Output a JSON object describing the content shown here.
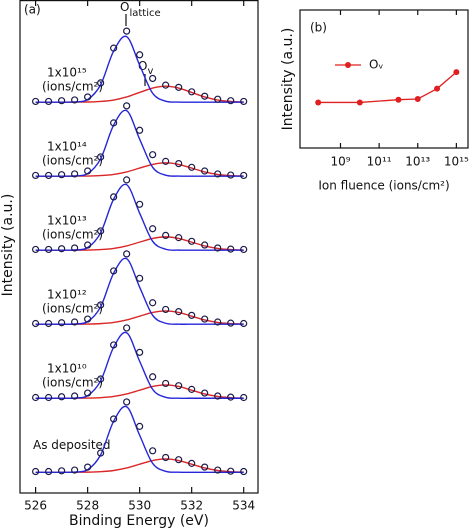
{
  "chart_data": [
    {
      "type": "spectra",
      "panel_label": "(a)",
      "xlabel": "Binding Energy (eV)",
      "ylabel": "Intensity (a.u.)",
      "xlim": [
        525.4,
        534.55
      ],
      "xticks": [
        526,
        528,
        530,
        532,
        534
      ],
      "ylim": [
        -0.28,
        6.38
      ],
      "annotations": [
        {
          "text": "O",
          "sub": "lattice"
        },
        {
          "text": "O",
          "sub": "v"
        }
      ],
      "colors": {
        "data": "#1c1c4a",
        "lattice": "#2626d9",
        "vacancy": "#d92626"
      },
      "x": [
        526,
        526.5,
        527,
        527.5,
        528,
        528.5,
        529,
        529.5,
        530,
        530.5,
        531,
        531.5,
        532,
        532.5,
        533,
        533.5,
        534
      ],
      "spectra": [
        {
          "label": "1x10¹⁵",
          "unit": "(ions/cm²)",
          "data": [
            5.01,
            5.01,
            5.02,
            5.03,
            5.07,
            5.26,
            5.73,
            5.96,
            5.64,
            5.32,
            5.23,
            5.2,
            5.14,
            5.08,
            5.04,
            5.02,
            5.01
          ],
          "lattice": [
            5,
            5,
            5,
            5.003,
            5.035,
            5.235,
            5.69,
            5.885,
            5.5,
            5.12,
            5.013,
            5.001,
            5,
            5,
            5,
            5,
            5
          ],
          "vacancy": [
            5,
            5,
            5,
            5.001,
            5.002,
            5.01,
            5.029,
            5.07,
            5.131,
            5.191,
            5.216,
            5.191,
            5.131,
            5.07,
            5.029,
            5.01,
            5.002
          ]
        },
        {
          "label": "1x10¹⁴",
          "unit": "(ions/cm²)",
          "data": [
            4.01,
            4.01,
            4.02,
            4.03,
            4.07,
            4.26,
            4.72,
            4.95,
            4.62,
            4.29,
            4.2,
            4.17,
            4.12,
            4.07,
            4.03,
            4.015,
            4.01
          ],
          "lattice": [
            4,
            4,
            4,
            4.003,
            4.035,
            4.235,
            4.69,
            4.885,
            4.5,
            4.12,
            4.013,
            4.001,
            4,
            4,
            4,
            4,
            4
          ],
          "vacancy": [
            4,
            4,
            4,
            4.001,
            4.002,
            4.008,
            4.024,
            4.058,
            4.109,
            4.159,
            4.18,
            4.159,
            4.109,
            4.058,
            4.024,
            4.008,
            4.002
          ]
        },
        {
          "label": "1x10¹³",
          "unit": "(ions/cm²)",
          "data": [
            3.01,
            3.01,
            3.02,
            3.03,
            3.07,
            3.26,
            3.72,
            3.95,
            3.62,
            3.29,
            3.2,
            3.17,
            3.12,
            3.07,
            3.03,
            3.015,
            3.01
          ],
          "lattice": [
            3,
            3,
            3,
            3.003,
            3.035,
            3.235,
            3.69,
            3.885,
            3.5,
            3.12,
            3.013,
            3.001,
            3,
            3,
            3,
            3,
            3
          ],
          "vacancy": [
            3,
            3,
            3,
            3.001,
            3.002,
            3.008,
            3.024,
            3.058,
            3.109,
            3.159,
            3.18,
            3.159,
            3.109,
            3.058,
            3.024,
            3.008,
            3.002
          ]
        },
        {
          "label": "1x10¹²",
          "unit": "(ions/cm²)",
          "data": [
            2.01,
            2.01,
            2.02,
            2.03,
            2.07,
            2.26,
            2.72,
            2.95,
            2.62,
            2.29,
            2.2,
            2.17,
            2.12,
            2.07,
            2.03,
            2.015,
            2.01
          ],
          "lattice": [
            2,
            2,
            2,
            2.003,
            2.035,
            2.235,
            2.69,
            2.885,
            2.5,
            2.12,
            2.013,
            2.001,
            2,
            2,
            2,
            2,
            2
          ],
          "vacancy": [
            2,
            2,
            2,
            2.001,
            2.002,
            2.008,
            2.024,
            2.058,
            2.109,
            2.159,
            2.18,
            2.159,
            2.109,
            2.058,
            2.024,
            2.008,
            2.002
          ]
        },
        {
          "label": "1x10¹⁰",
          "unit": "(ions/cm²)",
          "data": [
            1.01,
            1.01,
            1.02,
            1.03,
            1.07,
            1.26,
            1.72,
            1.95,
            1.62,
            1.29,
            1.2,
            1.17,
            1.12,
            1.07,
            1.03,
            1.015,
            1.01
          ],
          "lattice": [
            1,
            1,
            1,
            1.003,
            1.035,
            1.235,
            1.69,
            1.885,
            1.5,
            1.12,
            1.013,
            1.001,
            1,
            1,
            1,
            1,
            1
          ],
          "vacancy": [
            1,
            1,
            1,
            1.001,
            1.002,
            1.008,
            1.024,
            1.058,
            1.109,
            1.159,
            1.18,
            1.159,
            1.109,
            1.058,
            1.024,
            1.008,
            1.002
          ]
        },
        {
          "label": "As deposited",
          "data": [
            0.01,
            0.01,
            0.02,
            0.03,
            0.07,
            0.26,
            0.72,
            0.95,
            0.62,
            0.29,
            0.2,
            0.17,
            0.12,
            0.07,
            0.03,
            0.015,
            0.01
          ],
          "lattice": [
            0,
            0,
            0,
            0.003,
            0.035,
            0.235,
            0.69,
            0.885,
            0.5,
            0.12,
            0.013,
            0.001,
            0,
            0,
            0,
            0,
            0
          ],
          "vacancy": [
            0,
            0,
            0,
            0.001,
            0.002,
            0.008,
            0.024,
            0.058,
            0.109,
            0.159,
            0.18,
            0.159,
            0.109,
            0.058,
            0.024,
            0.008,
            0.002
          ]
        }
      ]
    },
    {
      "type": "line",
      "panel_label": "(b)",
      "xlabel": "Ion fluence (ions/cm²)",
      "ylabel": "Intensity (a.u.)",
      "xscale": "log",
      "xlim": [
        8000000.0,
        4000000000000000.0
      ],
      "xticks": [
        {
          "value": 1000000000.0,
          "label": "10⁹"
        },
        {
          "value": 100000000000.0,
          "label": "10¹¹"
        },
        {
          "value": 10000000000000.0,
          "label": "10¹³"
        },
        {
          "value": 1000000000000000.0,
          "label": "10¹⁵"
        }
      ],
      "ylim": [
        0,
        1
      ],
      "legend": "upper left",
      "x": [
        70000000.0,
        10000000000.0,
        1000000000000.0,
        10000000000000.0,
        100000000000000.0,
        1000000000000000.0
      ],
      "series": [
        {
          "name": "Oᵥ",
          "color": "#e02020",
          "values": [
            0.33,
            0.33,
            0.35,
            0.355,
            0.43,
            0.55
          ]
        }
      ]
    }
  ]
}
